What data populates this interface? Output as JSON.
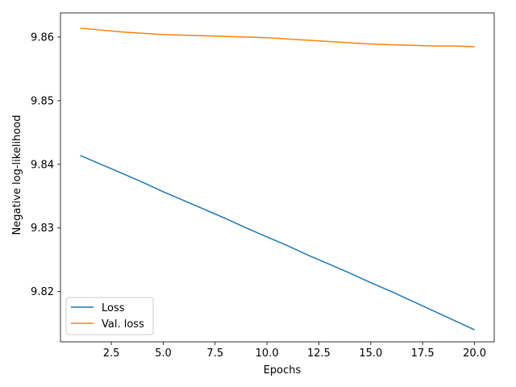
{
  "chart_data": {
    "type": "line",
    "title": "",
    "xlabel": "Epochs",
    "ylabel": "Negative log-likelihood",
    "xlim": [
      0.05,
      20.95
    ],
    "ylim": [
      9.8121,
      9.8638
    ],
    "x_ticks": [
      2.5,
      5.0,
      7.5,
      10.0,
      12.5,
      15.0,
      17.5,
      20.0
    ],
    "x_tick_labels": [
      "2.5",
      "5.0",
      "7.5",
      "10.0",
      "12.5",
      "15.0",
      "17.5",
      "20.0"
    ],
    "y_ticks": [
      9.82,
      9.83,
      9.84,
      9.85,
      9.86
    ],
    "y_tick_labels": [
      "9.82",
      "9.83",
      "9.84",
      "9.85",
      "9.86"
    ],
    "grid": false,
    "legend_position": "lower-left",
    "series": [
      {
        "name": "Loss",
        "color": "#1f77b4",
        "x": [
          1,
          2,
          3,
          4,
          5,
          6,
          7,
          8,
          9,
          10,
          11,
          12,
          13,
          14,
          15,
          16,
          17,
          18,
          19,
          20
        ],
        "y": [
          9.8414,
          9.84,
          9.8386,
          9.8372,
          9.8357,
          9.8343,
          9.8329,
          9.8315,
          9.83,
          9.8286,
          9.8272,
          9.8257,
          9.8243,
          9.8229,
          9.8214,
          9.82,
          9.8185,
          9.817,
          9.8155,
          9.814
        ]
      },
      {
        "name": "Val. loss",
        "color": "#ff7f0e",
        "x": [
          1,
          2,
          3,
          4,
          5,
          6,
          7,
          8,
          9,
          10,
          11,
          12,
          13,
          14,
          15,
          16,
          17,
          18,
          19,
          20
        ],
        "y": [
          9.8614,
          9.8611,
          9.8608,
          9.8606,
          9.8604,
          9.8603,
          9.8602,
          9.8601,
          9.86,
          9.8599,
          9.8597,
          9.8595,
          9.8593,
          9.8591,
          9.8589,
          9.8588,
          9.8587,
          9.8586,
          9.8586,
          9.8585
        ]
      }
    ]
  }
}
